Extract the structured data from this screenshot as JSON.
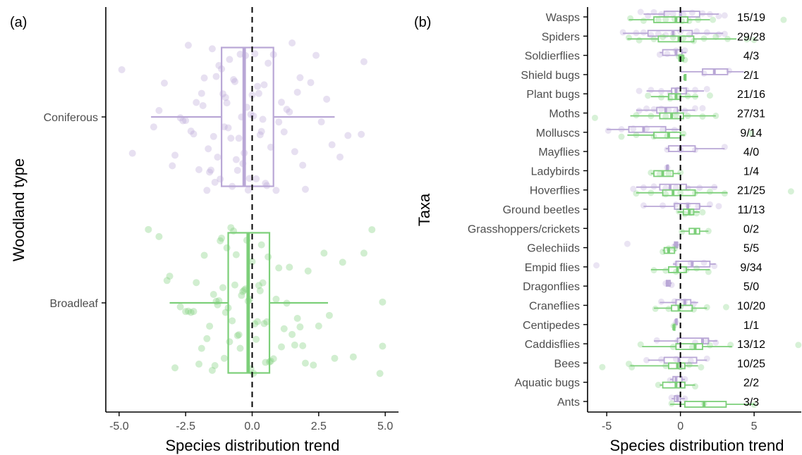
{
  "colors": {
    "coniferous": "#b9a7d6",
    "broadleaf": "#7ccf79",
    "axis": "#000000",
    "tick_label": "#4d4d4d"
  },
  "chart_data": [
    {
      "type": "boxplot",
      "panel_label": "(a)",
      "xlabel": "Species distribution trend",
      "ylabel": "Woodland type",
      "xlim": [
        -5.5,
        5.5
      ],
      "xticks": [
        -5.0,
        -2.5,
        0.0,
        2.5,
        5.0
      ],
      "xtick_labels": [
        "-5.0",
        "-2.5",
        "0.0",
        "2.5",
        "5.0"
      ],
      "reference_line_x": 0,
      "grid": false,
      "categories": [
        "Coniferous",
        "Broadleaf"
      ],
      "boxes": [
        {
          "category": "Coniferous",
          "color_key": "coniferous",
          "whisker_low": -3.8,
          "q1": -1.15,
          "median": -0.3,
          "q3": 0.8,
          "whisker_high": 3.1,
          "points": [
            -4.9,
            -4.5,
            -3.7,
            -3.5,
            -3.3,
            -3.0,
            -2.9,
            -2.7,
            -2.6,
            -2.5,
            -2.4,
            -2.3,
            -2.2,
            -2.1,
            -2.0,
            -1.9,
            -1.85,
            -1.8,
            -1.7,
            -1.65,
            -1.6,
            -1.55,
            -1.5,
            -1.45,
            -1.4,
            -1.35,
            -1.3,
            -1.25,
            -1.2,
            -1.15,
            -1.1,
            -1.05,
            -1.0,
            -0.95,
            -0.9,
            -0.85,
            -0.8,
            -0.75,
            -0.7,
            -0.65,
            -0.6,
            -0.55,
            -0.5,
            -0.45,
            -0.4,
            -0.35,
            -0.3,
            -0.25,
            -0.2,
            -0.15,
            -0.1,
            -0.05,
            0.0,
            0.05,
            0.1,
            0.15,
            0.2,
            0.25,
            0.3,
            0.35,
            0.4,
            0.45,
            0.5,
            0.55,
            0.6,
            0.7,
            0.8,
            0.9,
            1.0,
            1.1,
            1.2,
            1.3,
            1.4,
            1.5,
            1.6,
            1.7,
            1.8,
            1.9,
            2.0,
            2.2,
            2.4,
            2.6,
            2.8,
            3.0,
            3.3,
            3.6,
            4.1,
            4.2
          ]
        },
        {
          "category": "Broadleaf",
          "color_key": "broadleaf",
          "whisker_low": -3.1,
          "q1": -0.9,
          "median": -0.15,
          "q3": 0.65,
          "whisker_high": 2.85,
          "points": [
            -3.9,
            -3.5,
            -3.2,
            -3.1,
            -2.9,
            -2.7,
            -2.5,
            -2.4,
            -2.3,
            -2.2,
            -2.1,
            -2.0,
            -1.9,
            -1.8,
            -1.7,
            -1.6,
            -1.5,
            -1.45,
            -1.4,
            -1.35,
            -1.3,
            -1.25,
            -1.2,
            -1.15,
            -1.1,
            -1.05,
            -1.0,
            -0.95,
            -0.9,
            -0.85,
            -0.8,
            -0.75,
            -0.7,
            -0.65,
            -0.6,
            -0.55,
            -0.5,
            -0.45,
            -0.4,
            -0.35,
            -0.3,
            -0.25,
            -0.2,
            -0.15,
            -0.1,
            -0.05,
            0.0,
            0.05,
            0.1,
            0.15,
            0.2,
            0.25,
            0.3,
            0.35,
            0.4,
            0.45,
            0.5,
            0.55,
            0.6,
            0.65,
            0.7,
            0.8,
            0.9,
            1.0,
            1.1,
            1.2,
            1.3,
            1.4,
            1.5,
            1.6,
            1.7,
            1.8,
            1.9,
            2.0,
            2.1,
            2.3,
            2.5,
            2.7,
            2.9,
            3.1,
            3.4,
            3.8,
            4.2,
            4.5,
            4.8,
            4.9,
            4.9
          ]
        }
      ]
    },
    {
      "type": "boxplot",
      "panel_label": "(b)",
      "xlabel": "Species distribution trend",
      "ylabel": "Taxa",
      "xlim": [
        -6.3,
        8.2
      ],
      "xticks": [
        -5,
        0,
        5
      ],
      "xtick_labels": [
        "-5",
        "0",
        "5"
      ],
      "reference_line_x": 0,
      "grid": false,
      "count_label_format": "coniferous/broadleaf",
      "taxa": [
        {
          "name": "Wasps",
          "counts": "15/19",
          "coniferous": {
            "wl": -2.5,
            "q1": -1.1,
            "median": 0.0,
            "q3": 1.3,
            "wh": 2.6,
            "points": [
              -2.7,
              -2.2,
              -1.8,
              -1.3,
              -0.9,
              -0.5,
              0.2,
              0.8,
              1.5,
              2.0,
              2.6,
              3.0
            ]
          },
          "broadleaf": {
            "wl": -3.5,
            "q1": -1.8,
            "median": -0.3,
            "q3": 0.5,
            "wh": 2.0,
            "points": [
              -3.4,
              -2.5,
              -1.5,
              -1.0,
              -0.4,
              0.1,
              0.6,
              1.2,
              2.2,
              7.0
            ]
          }
        },
        {
          "name": "Spiders",
          "counts": "29/28",
          "coniferous": {
            "wl": -3.9,
            "q1": -2.2,
            "median": -0.5,
            "q3": 0.8,
            "wh": 2.9,
            "points": [
              -3.9,
              -3.0,
              -2.5,
              -2.0,
              -1.5,
              -1.0,
              -0.5,
              0.0,
              0.6,
              1.1,
              1.8,
              2.6,
              3.0
            ]
          },
          "broadleaf": {
            "wl": -3.6,
            "q1": -1.5,
            "median": -0.1,
            "q3": 0.9,
            "wh": 3.8,
            "points": [
              -3.5,
              -2.8,
              -1.8,
              -1.2,
              -0.5,
              0.2,
              0.9,
              1.6,
              2.4,
              3.2,
              4.5,
              5.0
            ]
          }
        },
        {
          "name": "Soldierflies",
          "counts": "4/3",
          "coniferous": {
            "wl": -1.4,
            "q1": -1.2,
            "median": -0.3,
            "q3": 0.1,
            "wh": 0.4,
            "points": [
              -1.4,
              -0.9,
              -0.3,
              0.3
            ]
          },
          "broadleaf": {
            "wl": -0.1,
            "q1": -0.1,
            "median": 0.05,
            "q3": 0.2,
            "wh": 0.3,
            "points": [
              -0.1,
              0.1,
              0.3
            ]
          }
        },
        {
          "name": "Shield bugs",
          "counts": "2/1",
          "coniferous": {
            "wl": 0.0,
            "q1": 1.5,
            "median": 2.3,
            "q3": 3.2,
            "wh": 4.3,
            "points": [
              1.6,
              3.3
            ]
          },
          "broadleaf": {
            "wl": 0.3,
            "q1": 0.3,
            "median": 0.3,
            "q3": 0.3,
            "wh": 0.3,
            "points": []
          }
        },
        {
          "name": "Plant bugs",
          "counts": "21/16",
          "coniferous": {
            "wl": -2.3,
            "q1": -0.6,
            "median": -0.3,
            "q3": 0.4,
            "wh": 1.6,
            "points": [
              -2.8,
              -2.0,
              -1.3,
              -0.7,
              -0.2,
              0.4,
              1.0,
              1.8
            ]
          },
          "broadleaf": {
            "wl": -2.0,
            "q1": -0.8,
            "median": -0.3,
            "q3": 0.0,
            "wh": 1.2,
            "points": [
              -2.2,
              -1.3,
              -0.7,
              -0.2,
              0.5,
              1.0,
              2.0
            ]
          }
        },
        {
          "name": "Moths",
          "counts": "27/31",
          "coniferous": {
            "wl": -3.0,
            "q1": -1.6,
            "median": -1.0,
            "q3": -0.2,
            "wh": 1.0,
            "points": [
              -2.8,
              -2.3,
              -1.8,
              -1.3,
              -0.8,
              -0.3,
              0.3,
              1.0,
              1.5
            ]
          },
          "broadleaf": {
            "wl": -3.4,
            "q1": -1.4,
            "median": -0.6,
            "q3": 0.2,
            "wh": 2.4,
            "points": [
              -5.8,
              -3.0,
              -2.0,
              -1.0,
              -0.3,
              0.5,
              1.5,
              2.4
            ]
          }
        },
        {
          "name": "Molluscs",
          "counts": "9/14",
          "coniferous": {
            "wl": -5.0,
            "q1": -3.5,
            "median": -2.5,
            "q3": -1.0,
            "wh": 0.0,
            "points": [
              -4.9,
              -4.0,
              -3.2,
              -2.3,
              -1.2,
              -0.4
            ]
          },
          "broadleaf": {
            "wl": -3.6,
            "q1": -1.8,
            "median": -0.8,
            "q3": 0.0,
            "wh": 0.3,
            "points": [
              -4.0,
              -3.0,
              -1.8,
              -0.9,
              0.2,
              4.8
            ]
          }
        },
        {
          "name": "Mayflies",
          "counts": "4/0",
          "coniferous": {
            "wl": -1.0,
            "q1": -0.8,
            "median": 0.0,
            "q3": 1.0,
            "wh": 3.0,
            "points": [
              -0.9,
              0.0,
              1.0,
              3.0
            ]
          },
          "broadleaf": null
        },
        {
          "name": "Ladybirds",
          "counts": "1/4",
          "coniferous": {
            "wl": -0.9,
            "q1": -0.9,
            "median": -0.9,
            "q3": -0.9,
            "wh": -0.9,
            "points": [
              -0.9
            ]
          },
          "broadleaf": {
            "wl": -2.0,
            "q1": -1.8,
            "median": -1.2,
            "q3": -0.5,
            "wh": 0.0,
            "points": [
              -2.0,
              -1.4,
              -0.8,
              0.0
            ]
          }
        },
        {
          "name": "Hoverflies",
          "counts": "21/25",
          "coniferous": {
            "wl": -3.0,
            "q1": -1.4,
            "median": -0.7,
            "q3": 0.4,
            "wh": 2.5,
            "points": [
              -3.2,
              -2.5,
              -1.8,
              -1.0,
              -0.3,
              0.5,
              1.3,
              2.3
            ]
          },
          "broadleaf": {
            "wl": -3.0,
            "q1": -1.2,
            "median": -0.5,
            "q3": 1.0,
            "wh": 3.2,
            "points": [
              -3.0,
              -2.0,
              -1.0,
              0.0,
              1.0,
              2.0,
              3.0,
              7.5
            ]
          }
        },
        {
          "name": "Ground beetles",
          "counts": "11/13",
          "coniferous": {
            "wl": -2.5,
            "q1": -0.4,
            "median": 0.5,
            "q3": 1.3,
            "wh": 2.1,
            "points": [
              -2.5,
              -1.2,
              -0.3,
              0.5,
              1.2,
              2.0,
              2.6
            ]
          },
          "broadleaf": {
            "wl": -0.2,
            "q1": 0.2,
            "median": 0.6,
            "q3": 0.9,
            "wh": 1.3,
            "points": [
              -0.1,
              0.3,
              0.7,
              1.1,
              1.5
            ]
          }
        },
        {
          "name": "Grasshoppers/crickets",
          "counts": "0/2",
          "coniferous": null,
          "broadleaf": {
            "wl": 0.0,
            "q1": 0.6,
            "median": 1.0,
            "q3": 1.3,
            "wh": 1.9,
            "points": [
              0.1,
              1.9
            ]
          }
        },
        {
          "name": "Gelechiids",
          "counts": "5/5",
          "coniferous": {
            "wl": -0.5,
            "q1": -0.4,
            "median": -0.3,
            "q3": -0.2,
            "wh": -0.1,
            "points": [
              -3.6,
              -0.4,
              -0.2
            ]
          },
          "broadleaf": {
            "wl": -1.2,
            "q1": -1.1,
            "median": -0.8,
            "q3": -0.4,
            "wh": -0.3,
            "points": [
              -1.2,
              -0.8,
              -0.4
            ]
          }
        },
        {
          "name": "Empid flies",
          "counts": "9/34",
          "coniferous": {
            "wl": -0.5,
            "q1": -0.3,
            "median": 0.8,
            "q3": 2.0,
            "wh": 2.4,
            "points": [
              -5.7,
              -0.3,
              0.7,
              1.6,
              2.3
            ]
          },
          "broadleaf": {
            "wl": -2.0,
            "q1": -0.8,
            "median": -0.2,
            "q3": 0.4,
            "wh": 2.0,
            "points": [
              -1.8,
              -1.0,
              -0.3,
              0.4,
              1.1,
              1.9
            ]
          }
        },
        {
          "name": "Dragonflies",
          "counts": "5/0",
          "coniferous": {
            "wl": -1.0,
            "q1": -0.95,
            "median": -0.85,
            "q3": -0.7,
            "wh": -0.6,
            "points": [
              -1.0,
              -0.8,
              -0.6
            ]
          },
          "broadleaf": null
        },
        {
          "name": "Craneflies",
          "counts": "10/20",
          "coniferous": {
            "wl": -1.4,
            "q1": -0.3,
            "median": 0.3,
            "q3": 0.7,
            "wh": 1.2,
            "points": [
              -1.3,
              -0.4,
              0.3,
              0.9
            ]
          },
          "broadleaf": {
            "wl": -1.8,
            "q1": -0.6,
            "median": -0.1,
            "q3": 0.8,
            "wh": 1.8,
            "points": [
              -1.7,
              -0.8,
              0.0,
              0.9,
              1.8,
              3.1
            ]
          }
        },
        {
          "name": "Centipedes",
          "counts": "1/1",
          "coniferous": {
            "wl": -0.3,
            "q1": -0.3,
            "median": -0.3,
            "q3": -0.3,
            "wh": -0.3,
            "points": [
              -0.3
            ]
          },
          "broadleaf": {
            "wl": -0.45,
            "q1": -0.45,
            "median": -0.45,
            "q3": -0.45,
            "wh": -0.45,
            "points": [
              -0.45
            ]
          }
        },
        {
          "name": "Caddisflies",
          "counts": "13/12",
          "coniferous": {
            "wl": -1.8,
            "q1": -0.2,
            "median": 1.5,
            "q3": 1.9,
            "wh": 2.5,
            "points": [
              -1.6,
              -0.2,
              1.0,
              1.8,
              2.4
            ]
          },
          "broadleaf": {
            "wl": -2.6,
            "q1": -0.3,
            "median": 1.0,
            "q3": 1.5,
            "wh": 3.5,
            "points": [
              -2.7,
              -0.5,
              0.8,
              2.0,
              3.4,
              8.0
            ]
          }
        },
        {
          "name": "Bees",
          "counts": "10/25",
          "coniferous": {
            "wl": -2.2,
            "q1": -1.1,
            "median": -0.1,
            "q3": 1.1,
            "wh": 1.8,
            "points": [
              -2.3,
              -1.3,
              -0.3,
              0.7,
              1.8
            ]
          },
          "broadleaf": {
            "wl": -3.4,
            "q1": -0.8,
            "median": -0.2,
            "q3": 0.3,
            "wh": 1.2,
            "points": [
              -5.3,
              -3.5,
              -3.3,
              -1.0,
              0.0,
              0.6,
              1.4
            ]
          }
        },
        {
          "name": "Aquatic bugs",
          "counts": "2/2",
          "coniferous": {
            "wl": -0.7,
            "q1": -0.5,
            "median": -0.3,
            "q3": 0.1,
            "wh": 0.3,
            "points": [
              -0.7,
              0.3
            ]
          },
          "broadleaf": {
            "wl": -1.4,
            "q1": -1.2,
            "median": -0.3,
            "q3": 0.3,
            "wh": 1.0,
            "points": [
              -1.5,
              1.0
            ]
          }
        },
        {
          "name": "Ants",
          "counts": "3/3",
          "coniferous": {
            "wl": -0.6,
            "q1": -0.4,
            "median": -0.2,
            "q3": 0.0,
            "wh": 0.3,
            "points": [
              -0.6,
              -0.2,
              0.3
            ]
          },
          "broadleaf": {
            "wl": -0.7,
            "q1": 0.3,
            "median": 1.6,
            "q3": 3.1,
            "wh": 5.0,
            "points": [
              -0.6,
              1.6,
              5.0
            ]
          }
        }
      ]
    }
  ]
}
